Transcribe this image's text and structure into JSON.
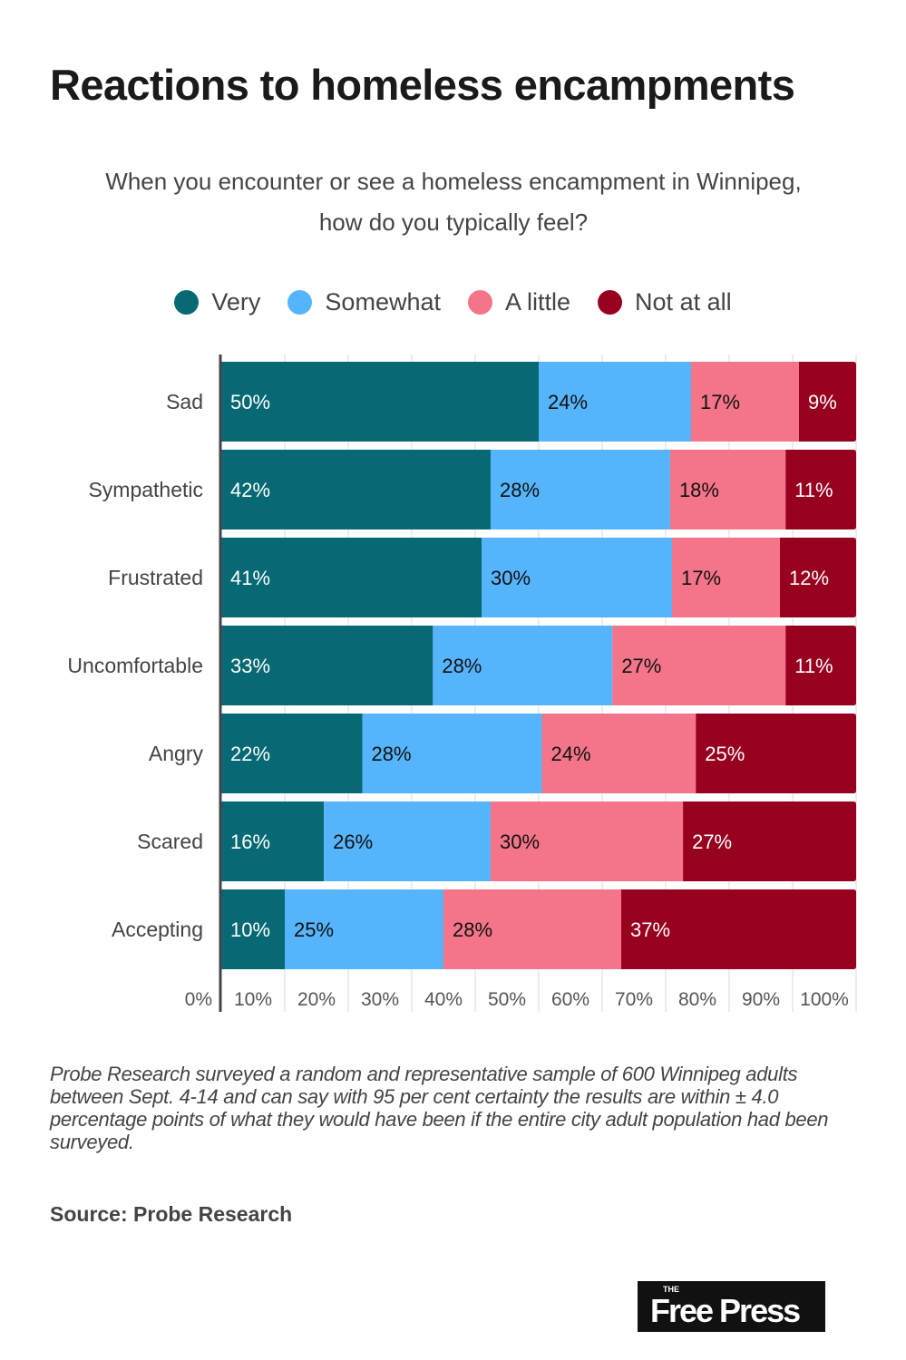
{
  "header": {
    "title": "Reactions to homeless encampments",
    "subtitle_line1": "When you encounter or see a homeless encampment in Winnipeg,",
    "subtitle_line2": "how do you typically feel?"
  },
  "legend": [
    {
      "label": "Very",
      "color": "#066973"
    },
    {
      "label": "Somewhat",
      "color": "#56B4FC"
    },
    {
      "label": "A little",
      "color": "#F47489"
    },
    {
      "label": "Not at all",
      "color": "#98001F"
    }
  ],
  "chart_data": {
    "type": "bar",
    "orientation": "horizontal",
    "stacked": true,
    "normalized": true,
    "title": "Reactions to homeless encampments",
    "subtitle": "When you encounter or see a homeless encampment in Winnipeg, how do you typically feel?",
    "categories": [
      "Sad",
      "Sympathetic",
      "Frustrated",
      "Uncomfortable",
      "Angry",
      "Scared",
      "Accepting"
    ],
    "series": [
      {
        "name": "Very",
        "color": "#066973",
        "label_color": "#ffffff",
        "values": [
          50,
          42,
          41,
          33,
          22,
          16,
          10
        ]
      },
      {
        "name": "Somewhat",
        "color": "#56B4FC",
        "label_color": "#111111",
        "values": [
          24,
          28,
          30,
          28,
          28,
          26,
          25
        ]
      },
      {
        "name": "A little",
        "color": "#F47489",
        "label_color": "#111111",
        "values": [
          17,
          18,
          17,
          27,
          24,
          30,
          28
        ]
      },
      {
        "name": "Not at all",
        "color": "#98001F",
        "label_color": "#ffffff",
        "values": [
          9,
          11,
          12,
          11,
          25,
          27,
          37
        ]
      }
    ],
    "xlabel": "",
    "ylabel": "",
    "xlim": [
      0,
      100
    ],
    "x_ticks": [
      "0%",
      "10%",
      "20%",
      "30%",
      "40%",
      "50%",
      "60%",
      "70%",
      "80%",
      "90%",
      "100%"
    ],
    "grid": true,
    "legend_position": "top-center"
  },
  "footer": {
    "note": "Probe Research surveyed a random and representative sample of 600 Winnipeg adults between Sept. 4-14 and can say with 95 per cent certainty the results are within ± 4.0 percentage points of what they would have been if the entire city adult population had been surveyed.",
    "source": "Source: Probe Research",
    "logo_small": "THE",
    "logo_main": "Free Press"
  }
}
